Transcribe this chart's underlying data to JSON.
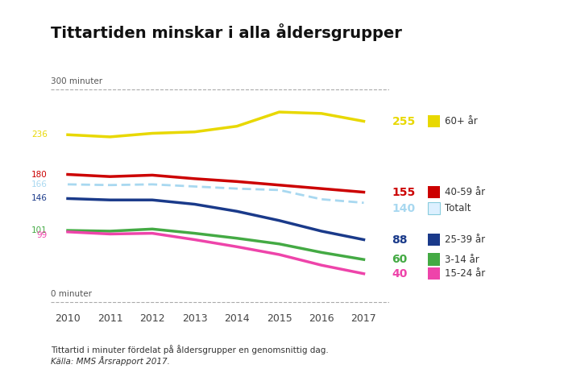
{
  "title": "Tittartiden minskar i alla åldersgrupper",
  "years": [
    2010,
    2011,
    2012,
    2013,
    2014,
    2015,
    2016,
    2017
  ],
  "series": {
    "60+ år": {
      "values": [
        236,
        233,
        238,
        240,
        248,
        268,
        266,
        255
      ],
      "color": "#e8d800",
      "linewidth": 2.5,
      "linestyle": "solid"
    },
    "40-59 år": {
      "values": [
        180,
        177,
        179,
        174,
        170,
        165,
        160,
        155
      ],
      "color": "#cc0000",
      "linewidth": 2.5,
      "linestyle": "solid"
    },
    "Totalt": {
      "values": [
        166,
        165,
        166,
        163,
        160,
        158,
        145,
        140
      ],
      "color": "#a8d8f0",
      "linewidth": 2.0,
      "linestyle": "dashed"
    },
    "25-39 år": {
      "values": [
        146,
        144,
        144,
        138,
        128,
        115,
        100,
        88
      ],
      "color": "#1a3a8a",
      "linewidth": 2.5,
      "linestyle": "solid"
    },
    "3-14 år": {
      "values": [
        101,
        100,
        103,
        97,
        90,
        82,
        70,
        60
      ],
      "color": "#44aa44",
      "linewidth": 2.5,
      "linestyle": "solid"
    },
    "15-24 år": {
      "values": [
        99,
        96,
        97,
        88,
        78,
        67,
        52,
        40
      ],
      "color": "#ee44aa",
      "linewidth": 2.5,
      "linestyle": "solid"
    }
  },
  "ylim": [
    -10,
    325
  ],
  "ref_lines": [
    {
      "y": 300,
      "label": "300 minuter"
    },
    {
      "y": 0,
      "label": "0 minuter"
    }
  ],
  "legend_order": [
    "60+ år",
    "40-59 år",
    "Totalt",
    "25-39 år",
    "3-14 år",
    "15-24 år"
  ],
  "legend_colors": {
    "60+ år": "#e8d800",
    "40-59 år": "#cc0000",
    "Totalt": "#a8d8f0",
    "25-39 år": "#1a3a8a",
    "3-14 år": "#44aa44",
    "15-24 år": "#ee44aa"
  },
  "end_label_values": {
    "60+ år": 255,
    "40-59 år": 155,
    "Totalt": 140,
    "25-39 år": 88,
    "3-14 år": 60,
    "15-24 år": 40
  },
  "start_label_values": {
    "60+ år": 236,
    "40-59 år": 180,
    "Totalt": 166,
    "25-39 år": 146,
    "3-14 år": 101,
    "15-24 år": 99
  },
  "start_label_offsets": {
    "60+ år": 0,
    "40-59 år": 0,
    "Totalt": 0,
    "25-39 år": 0,
    "3-14 år": 0,
    "15-24 år": -5
  },
  "end_label_offsets": {
    "60+ år": 0,
    "40-59 år": 0,
    "Totalt": -8,
    "25-39 år": 0,
    "3-14 år": 0,
    "15-24 år": 0
  },
  "footnote1": "Tittartid i minuter fördelat på åldersgrupper en genomsnittig dag.",
  "footnote2": "Källa: MMS Årsrapport 2017.",
  "bg_color": "#ffffff"
}
